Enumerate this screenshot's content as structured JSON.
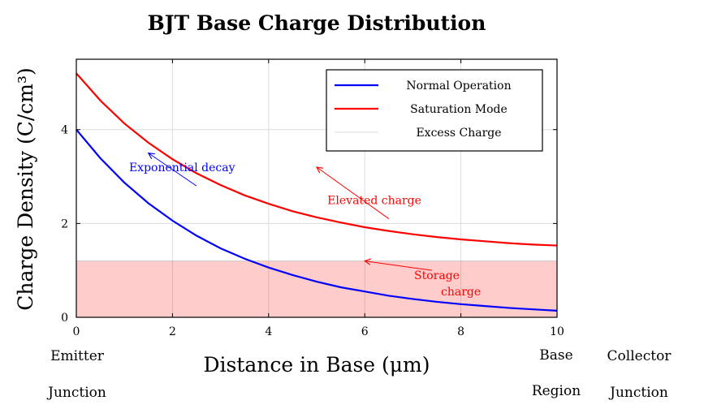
{
  "chart_data": {
    "type": "line",
    "title": "BJT Base Charge Distribution",
    "xlabel": "Distance in Base (μm)",
    "ylabel": "Charge Density (C/cm³)",
    "xlim": [
      0,
      10
    ],
    "ylim": [
      0,
      5.5
    ],
    "xticks": [
      0,
      2,
      4,
      6,
      8,
      10
    ],
    "yticks": [
      0,
      2,
      4
    ],
    "grid": true,
    "legend_position": "top-right",
    "series": [
      {
        "name": "Normal Operation",
        "color": "#0000ff",
        "x": [
          0,
          0.5,
          1,
          1.5,
          2,
          2.5,
          3,
          3.5,
          4,
          4.5,
          5,
          5.5,
          6,
          6.5,
          7,
          7.5,
          8,
          8.5,
          9,
          9.5,
          10
        ],
        "y": [
          4.0,
          3.39,
          2.87,
          2.43,
          2.06,
          1.74,
          1.47,
          1.25,
          1.06,
          0.9,
          0.76,
          0.64,
          0.55,
          0.46,
          0.39,
          0.33,
          0.28,
          0.24,
          0.2,
          0.17,
          0.14
        ]
      },
      {
        "name": "Saturation Mode",
        "color": "#ff0000",
        "x": [
          0,
          0.5,
          1,
          1.5,
          2,
          2.5,
          3,
          3.5,
          4,
          4.5,
          5,
          5.5,
          6,
          6.5,
          7,
          7.5,
          8,
          8.5,
          9,
          9.5,
          10
        ],
        "y": [
          5.2,
          4.62,
          4.13,
          3.72,
          3.37,
          3.07,
          2.82,
          2.6,
          2.42,
          2.26,
          2.13,
          2.02,
          1.92,
          1.84,
          1.77,
          1.71,
          1.66,
          1.62,
          1.58,
          1.55,
          1.53
        ]
      },
      {
        "name": "Excess Charge",
        "color": "#ff0000",
        "fill_opacity": 0.2,
        "type": "area",
        "x": [
          0,
          10
        ],
        "y": [
          1.2,
          1.2
        ]
      }
    ],
    "annotations": [
      {
        "text": "Exponential decay",
        "color": "#0000ff",
        "text_at": [
          2.2,
          3.2
        ],
        "arrow_from": [
          2.5,
          2.8
        ],
        "arrow_to": [
          1.5,
          3.5
        ]
      },
      {
        "text": "Elevated charge",
        "color": "#ff0000",
        "text_at": [
          6.2,
          2.5
        ],
        "arrow_from": [
          6.5,
          2.1
        ],
        "arrow_to": [
          5.0,
          3.2
        ]
      },
      {
        "text": "Storage",
        "color": "#ff0000",
        "text_at": [
          7.5,
          0.9
        ],
        "arrow_from": [
          7.4,
          1.0
        ],
        "arrow_to": [
          6.0,
          1.2
        ]
      },
      {
        "text": "charge",
        "color": "#ff0000",
        "text_at": [
          8.0,
          0.55
        ]
      }
    ],
    "side_labels": {
      "left_line1": "Emitter",
      "left_line2": "Junction",
      "base_line1": "Base",
      "base_line2": "Region",
      "right_line1": "Collector",
      "right_line2": "Junction"
    }
  }
}
